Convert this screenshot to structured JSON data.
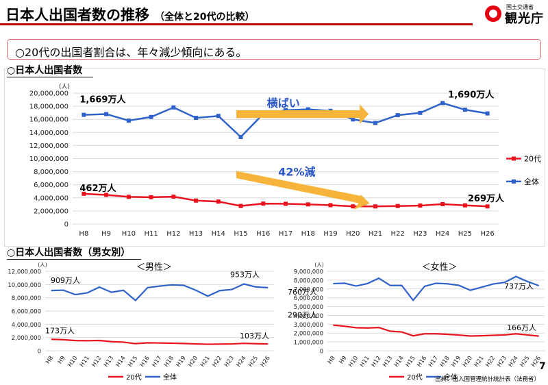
{
  "header": {
    "title": "日本人出国者数の推移",
    "subtitle": "（全体と20代の比較）",
    "logo_small": "国土交通省",
    "logo_main": "観光庁"
  },
  "summary": "○20代の出国者割合は、年々減少傾向にある。",
  "section1_label": "○日本人出国者数",
  "section2_label": "○日本人出国者数（男女別）",
  "footer": {
    "source": "出典：出入国管理統計統計表（法務省）",
    "page_number": "7"
  },
  "colors": {
    "total": "#2e62c9",
    "twenties": "#e8141d",
    "arrow": "#f7b43b",
    "arrow_text": "#2b57c7",
    "grid": "#d9d9d9",
    "title_bar": "#c00000"
  },
  "chart_data": [
    {
      "id": "main",
      "type": "line",
      "title": "日本人出国者数",
      "unit_label": "(人)",
      "categories": [
        "H8",
        "H9",
        "H10",
        "H11",
        "H12",
        "H13",
        "H14",
        "H15",
        "H16",
        "H17",
        "H18",
        "H19",
        "H20",
        "H21",
        "H22",
        "H23",
        "H24",
        "H25",
        "H26"
      ],
      "ylim": [
        0,
        20000000
      ],
      "yticks": [
        "0",
        "2,000,000",
        "4,000,000",
        "6,000,000",
        "8,000,000",
        "10,000,000",
        "12,000,000",
        "14,000,000",
        "16,000,000",
        "18,000,000",
        "20,000,000"
      ],
      "legend": [
        "20代",
        "全体"
      ],
      "legend_position": "right",
      "series": [
        {
          "name": "全体",
          "values": [
            16690000,
            16800000,
            15810000,
            16360000,
            17820000,
            16220000,
            16520000,
            13300000,
            16830000,
            17400000,
            17530000,
            17290000,
            15990000,
            15450000,
            16640000,
            16990000,
            18490000,
            17470000,
            16900000
          ]
        },
        {
          "name": "20代",
          "values": [
            4620000,
            4450000,
            4150000,
            4100000,
            4180000,
            3580000,
            3430000,
            2760000,
            3120000,
            3090000,
            3000000,
            2880000,
            2700000,
            2690000,
            2750000,
            2820000,
            3040000,
            2850000,
            2690000
          ]
        }
      ],
      "annotations": {
        "total_start": "1,669万人",
        "total_end": "1,690万人",
        "youth_start": "462万人",
        "youth_end": "269万人",
        "flat_arrow": "横ばい",
        "down_arrow": "42%減"
      }
    },
    {
      "id": "male",
      "type": "line",
      "title": "＜男性＞",
      "unit_label": "(人)",
      "categories": [
        "H8",
        "H9",
        "H10",
        "H11",
        "H12",
        "H13",
        "H14",
        "H15",
        "H16",
        "H17",
        "H18",
        "H19",
        "H20",
        "H21",
        "H22",
        "H23",
        "H24",
        "H25",
        "H26"
      ],
      "ylim": [
        0,
        12000000
      ],
      "yticks": [
        "0",
        "2,000,000",
        "4,000,000",
        "6,000,000",
        "8,000,000",
        "10,000,000",
        "12,000,000"
      ],
      "legend": [
        "20代",
        "全体"
      ],
      "legend_position": "bottom",
      "series": [
        {
          "name": "全体",
          "values": [
            9090000,
            9150000,
            8480000,
            8750000,
            9610000,
            8830000,
            9120000,
            7590000,
            9530000,
            9760000,
            9950000,
            9880000,
            9140000,
            8250000,
            9080000,
            9250000,
            10080000,
            9630000,
            9530000
          ]
        },
        {
          "name": "20代",
          "values": [
            1730000,
            1670000,
            1540000,
            1520000,
            1550000,
            1370000,
            1300000,
            1070000,
            1200000,
            1170000,
            1140000,
            1100000,
            1030000,
            990000,
            1000000,
            1030000,
            1120000,
            1060000,
            1030000
          ]
        }
      ],
      "annotations": {
        "total_start": "909万人",
        "total_end": "953万人",
        "youth_start": "173万人",
        "youth_end": "103万人"
      }
    },
    {
      "id": "female",
      "type": "line",
      "title": "＜女性＞",
      "unit_label": "(人)",
      "categories": [
        "H8",
        "H9",
        "H10",
        "H11",
        "H12",
        "H13",
        "H14",
        "H15",
        "H16",
        "H17",
        "H18",
        "H19",
        "H20",
        "H21",
        "H22",
        "H23",
        "H24",
        "H25",
        "H26"
      ],
      "ylim": [
        0,
        9000000
      ],
      "yticks": [
        "0",
        "1,000,000",
        "2,000,000",
        "3,000,000",
        "4,000,000",
        "5,000,000",
        "6,000,000",
        "7,000,000",
        "8,000,000",
        "9,000,000"
      ],
      "legend": [
        "20代",
        "全体"
      ],
      "legend_position": "bottom",
      "series": [
        {
          "name": "全体",
          "values": [
            7600000,
            7650000,
            7330000,
            7610000,
            8210000,
            7390000,
            7400000,
            5710000,
            7300000,
            7640000,
            7580000,
            7410000,
            6850000,
            7200000,
            7560000,
            7740000,
            8410000,
            7840000,
            7370000
          ]
        },
        {
          "name": "20代",
          "values": [
            2900000,
            2780000,
            2610000,
            2580000,
            2630000,
            2210000,
            2130000,
            1690000,
            1920000,
            1920000,
            1860000,
            1780000,
            1670000,
            1700000,
            1750000,
            1790000,
            1920000,
            1790000,
            1660000
          ]
        }
      ],
      "annotations": {
        "total_start": "760万人",
        "total_end": "737万人",
        "youth_start": "290万人",
        "youth_end": "166万人"
      }
    }
  ]
}
